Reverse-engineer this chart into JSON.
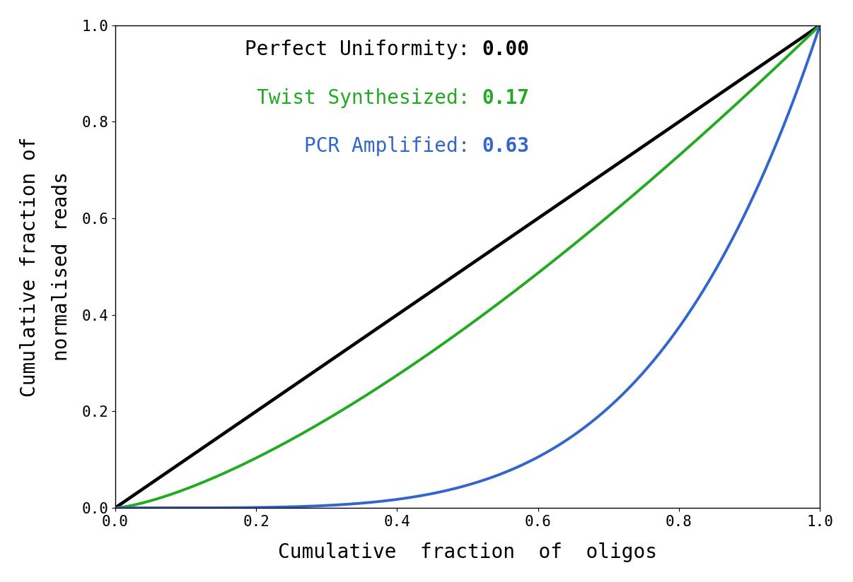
{
  "xlabel": "Cumulative  fraction  of  oligos",
  "ylabel": "Cumulative fraction of\nnormalised reads",
  "xlim": [
    0.0,
    1.0
  ],
  "ylim": [
    0.0,
    1.0
  ],
  "perfect_color": "#000000",
  "twist_color": "#22aa22",
  "pcr_color": "#3366cc",
  "gini_twist": 0.17,
  "gini_pcr": 0.63,
  "line_width": 2.8,
  "annotation_fontsize": 20,
  "axis_label_fontsize": 20,
  "tick_fontsize": 15,
  "background_color": "#ffffff",
  "n_points": 2000
}
